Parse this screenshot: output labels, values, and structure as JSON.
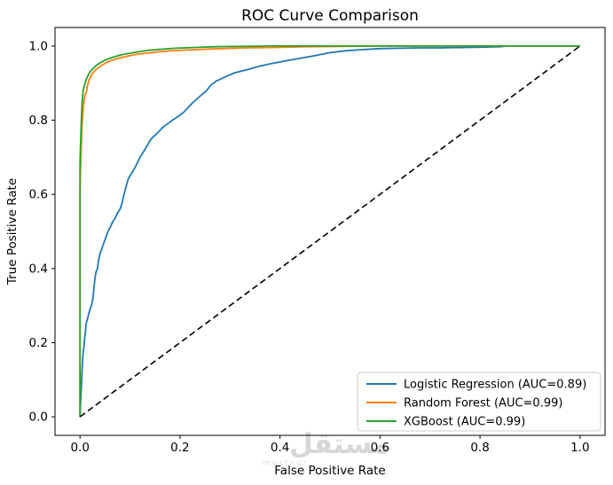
{
  "title": "ROC Curve Comparison",
  "watermark": {
    "text": "مستقل",
    "subtext": "mostaql"
  },
  "chart_data": {
    "type": "line",
    "title": "ROC Curve Comparison",
    "xlabel": "False Positive Rate",
    "ylabel": "True Positive Rate",
    "xlim": [
      -0.05,
      1.05
    ],
    "ylim": [
      -0.05,
      1.05
    ],
    "grid": false,
    "legend_position": "lower right",
    "x_ticks": [
      {
        "value": 0.0,
        "label": "0.0"
      },
      {
        "value": 0.2,
        "label": "0.2"
      },
      {
        "value": 0.4,
        "label": "0.4"
      },
      {
        "value": 0.6,
        "label": "0.6"
      },
      {
        "value": 0.8,
        "label": "0.8"
      },
      {
        "value": 1.0,
        "label": "1.0"
      }
    ],
    "y_ticks": [
      {
        "value": 0.0,
        "label": "0.0"
      },
      {
        "value": 0.2,
        "label": "0.2"
      },
      {
        "value": 0.4,
        "label": "0.4"
      },
      {
        "value": 0.6,
        "label": "0.6"
      },
      {
        "value": 0.8,
        "label": "0.8"
      },
      {
        "value": 1.0,
        "label": "1.0"
      }
    ],
    "series": [
      {
        "name": "logistic-regression",
        "label": "Logistic Regression (AUC=0.89)",
        "auc": 0.89,
        "color": "#1f77b4",
        "style": "solid",
        "points": [
          [
            0,
            0
          ],
          [
            0.001,
            0.03
          ],
          [
            0.002,
            0.06
          ],
          [
            0.003,
            0.09
          ],
          [
            0.004,
            0.12
          ],
          [
            0.005,
            0.15
          ],
          [
            0.006,
            0.17
          ],
          [
            0.008,
            0.19
          ],
          [
            0.009,
            0.21
          ],
          [
            0.011,
            0.23
          ],
          [
            0.012,
            0.25
          ],
          [
            0.014,
            0.26
          ],
          [
            0.016,
            0.27
          ],
          [
            0.018,
            0.28
          ],
          [
            0.02,
            0.29
          ],
          [
            0.023,
            0.3
          ],
          [
            0.026,
            0.32
          ],
          [
            0.028,
            0.35
          ],
          [
            0.03,
            0.375
          ],
          [
            0.032,
            0.39
          ],
          [
            0.035,
            0.4
          ],
          [
            0.037,
            0.42
          ],
          [
            0.04,
            0.44
          ],
          [
            0.044,
            0.455
          ],
          [
            0.048,
            0.47
          ],
          [
            0.052,
            0.485
          ],
          [
            0.056,
            0.5
          ],
          [
            0.06,
            0.51
          ],
          [
            0.065,
            0.525
          ],
          [
            0.07,
            0.535
          ],
          [
            0.075,
            0.55
          ],
          [
            0.08,
            0.56
          ],
          [
            0.084,
            0.575
          ],
          [
            0.088,
            0.6
          ],
          [
            0.092,
            0.62
          ],
          [
            0.096,
            0.64
          ],
          [
            0.1,
            0.65
          ],
          [
            0.107,
            0.665
          ],
          [
            0.113,
            0.68
          ],
          [
            0.12,
            0.7
          ],
          [
            0.127,
            0.715
          ],
          [
            0.134,
            0.73
          ],
          [
            0.14,
            0.745
          ],
          [
            0.146,
            0.755
          ],
          [
            0.155,
            0.765
          ],
          [
            0.165,
            0.78
          ],
          [
            0.175,
            0.79
          ],
          [
            0.185,
            0.8
          ],
          [
            0.196,
            0.81
          ],
          [
            0.208,
            0.822
          ],
          [
            0.22,
            0.84
          ],
          [
            0.232,
            0.855
          ],
          [
            0.243,
            0.868
          ],
          [
            0.252,
            0.878
          ],
          [
            0.262,
            0.895
          ],
          [
            0.272,
            0.905
          ],
          [
            0.283,
            0.912
          ],
          [
            0.295,
            0.92
          ],
          [
            0.31,
            0.928
          ],
          [
            0.325,
            0.933
          ],
          [
            0.34,
            0.938
          ],
          [
            0.36,
            0.946
          ],
          [
            0.38,
            0.952
          ],
          [
            0.4,
            0.957
          ],
          [
            0.42,
            0.962
          ],
          [
            0.445,
            0.968
          ],
          [
            0.47,
            0.974
          ],
          [
            0.5,
            0.982
          ],
          [
            0.53,
            0.987
          ],
          [
            0.56,
            0.99
          ],
          [
            0.6,
            0.993
          ],
          [
            0.64,
            0.994
          ],
          [
            0.68,
            0.995
          ],
          [
            0.72,
            0.995
          ],
          [
            0.76,
            0.996
          ],
          [
            0.8,
            0.997
          ],
          [
            0.84,
            0.998
          ],
          [
            0.855,
            1.0
          ],
          [
            1,
            1
          ]
        ]
      },
      {
        "name": "random-forest",
        "label": "Random Forest (AUC=0.99)",
        "auc": 0.99,
        "color": "#ff7f0e",
        "style": "solid",
        "points": [
          [
            0,
            0
          ],
          [
            0,
            0.6
          ],
          [
            0.001,
            0.66
          ],
          [
            0.002,
            0.71
          ],
          [
            0.003,
            0.75
          ],
          [
            0.004,
            0.78
          ],
          [
            0.005,
            0.805
          ],
          [
            0.006,
            0.825
          ],
          [
            0.007,
            0.84
          ],
          [
            0.008,
            0.852
          ],
          [
            0.009,
            0.862
          ],
          [
            0.01,
            0.868
          ],
          [
            0.012,
            0.873
          ],
          [
            0.013,
            0.877
          ],
          [
            0.014,
            0.888
          ],
          [
            0.016,
            0.898
          ],
          [
            0.018,
            0.908
          ],
          [
            0.021,
            0.916
          ],
          [
            0.024,
            0.924
          ],
          [
            0.028,
            0.931
          ],
          [
            0.033,
            0.938
          ],
          [
            0.039,
            0.944
          ],
          [
            0.046,
            0.95
          ],
          [
            0.054,
            0.956
          ],
          [
            0.063,
            0.961
          ],
          [
            0.074,
            0.966
          ],
          [
            0.086,
            0.97
          ],
          [
            0.1,
            0.974
          ],
          [
            0.115,
            0.978
          ],
          [
            0.135,
            0.981
          ],
          [
            0.155,
            0.984
          ],
          [
            0.18,
            0.987
          ],
          [
            0.21,
            0.989
          ],
          [
            0.245,
            0.991
          ],
          [
            0.285,
            0.993
          ],
          [
            0.33,
            0.995
          ],
          [
            0.385,
            0.996
          ],
          [
            0.45,
            0.998
          ],
          [
            0.52,
            0.999
          ],
          [
            0.6,
            1.0
          ],
          [
            1,
            1
          ]
        ]
      },
      {
        "name": "xgboost",
        "label": "XGBoost (AUC=0.99)",
        "auc": 0.99,
        "color": "#2ca02c",
        "style": "solid",
        "points": [
          [
            0,
            0
          ],
          [
            0,
            0.68
          ],
          [
            0.001,
            0.73
          ],
          [
            0.002,
            0.77
          ],
          [
            0.003,
            0.81
          ],
          [
            0.004,
            0.84
          ],
          [
            0.005,
            0.862
          ],
          [
            0.006,
            0.876
          ],
          [
            0.007,
            0.886
          ],
          [
            0.009,
            0.895
          ],
          [
            0.011,
            0.904
          ],
          [
            0.013,
            0.912
          ],
          [
            0.016,
            0.92
          ],
          [
            0.019,
            0.928
          ],
          [
            0.023,
            0.935
          ],
          [
            0.028,
            0.942
          ],
          [
            0.034,
            0.949
          ],
          [
            0.041,
            0.955
          ],
          [
            0.049,
            0.961
          ],
          [
            0.058,
            0.966
          ],
          [
            0.069,
            0.971
          ],
          [
            0.082,
            0.976
          ],
          [
            0.097,
            0.98
          ],
          [
            0.115,
            0.984
          ],
          [
            0.135,
            0.988
          ],
          [
            0.16,
            0.991
          ],
          [
            0.19,
            0.994
          ],
          [
            0.225,
            0.996
          ],
          [
            0.27,
            0.998
          ],
          [
            0.32,
            0.999
          ],
          [
            0.38,
            1.0
          ],
          [
            1,
            1
          ]
        ]
      }
    ],
    "reference_line": {
      "name": "chance-diagonal",
      "color": "#000000",
      "style": "dashed",
      "points": [
        [
          0,
          0
        ],
        [
          1,
          1
        ]
      ]
    }
  }
}
